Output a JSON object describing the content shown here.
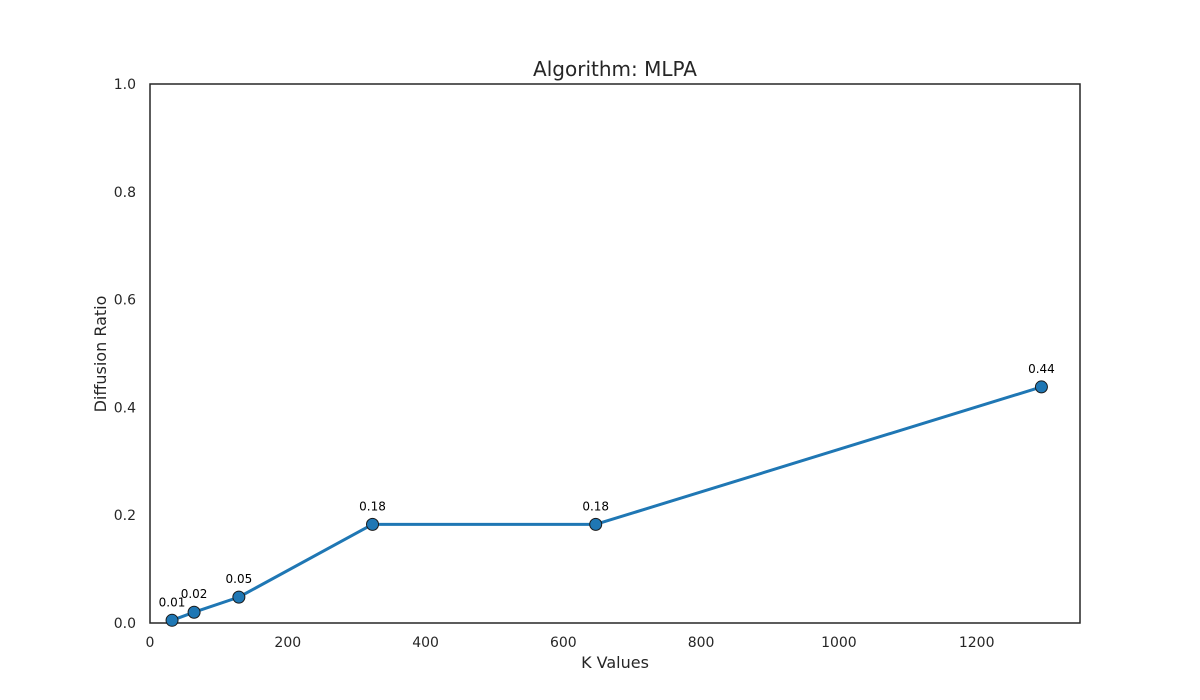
{
  "chart_data": {
    "type": "line",
    "title": "Algorithm: MLPA",
    "xlabel": "K Values",
    "ylabel": "Diffusion Ratio",
    "xlim": [
      0,
      1350
    ],
    "ylim": [
      0,
      1.0
    ],
    "xticks": [
      "0",
      "200",
      "400",
      "600",
      "800",
      "1000",
      "1200"
    ],
    "yticks": [
      "0.0",
      "0.2",
      "0.4",
      "0.6",
      "0.8",
      "1.0"
    ],
    "grid": false,
    "series": [
      {
        "color": "#1f77b4",
        "x": [
          32,
          64,
          129,
          323,
          647,
          1294
        ],
        "y": [
          0.005,
          0.02,
          0.048,
          0.183,
          0.183,
          0.438
        ],
        "labels": [
          "0.01",
          "0.02",
          "0.05",
          "0.18",
          "0.18",
          "0.44"
        ]
      }
    ]
  }
}
